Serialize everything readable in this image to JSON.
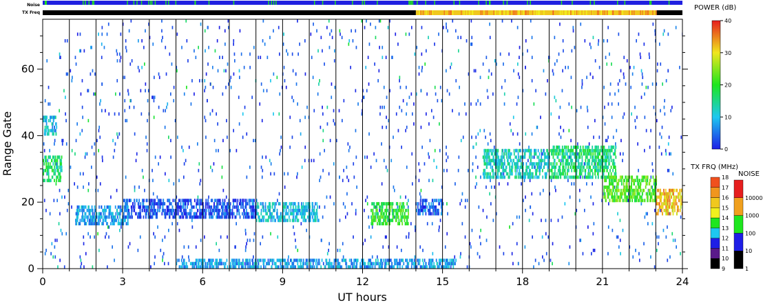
{
  "chart_data": {
    "type": "heatmap",
    "xlabel": "UT hours",
    "ylabel": "Range Gate",
    "xlim": [
      0,
      24
    ],
    "ylim": [
      0,
      75
    ],
    "x_ticks": [
      "0",
      "3",
      "6",
      "9",
      "12",
      "15",
      "18",
      "21",
      "24"
    ],
    "x_tick_values": [
      0,
      3,
      6,
      9,
      12,
      15,
      18,
      21,
      24
    ],
    "y_ticks": [
      "0",
      "20",
      "40",
      "60"
    ],
    "y_tick_values": [
      0,
      20,
      40,
      60
    ],
    "scan_boundaries": [
      1,
      2,
      3,
      4,
      5,
      6,
      7,
      8,
      9,
      10,
      11,
      12,
      13,
      14,
      15,
      16,
      17,
      18,
      19,
      20,
      21,
      22,
      23
    ],
    "power_regions": [
      {
        "t0": 0.0,
        "t1": 0.7,
        "r0": 26,
        "r1": 34,
        "power": 16
      },
      {
        "t0": 0.0,
        "t1": 0.5,
        "r0": 40,
        "r1": 46,
        "power": 10
      },
      {
        "t0": 1.2,
        "t1": 3.2,
        "r0": 13,
        "r1": 19,
        "power": 8
      },
      {
        "t0": 3.0,
        "t1": 8.0,
        "r0": 15,
        "r1": 21,
        "power": 3
      },
      {
        "t0": 8.0,
        "t1": 10.3,
        "r0": 14,
        "r1": 20,
        "power": 10
      },
      {
        "t0": 12.3,
        "t1": 13.7,
        "r0": 13,
        "r1": 20,
        "power": 20
      },
      {
        "t0": 14.0,
        "t1": 15.0,
        "r0": 16,
        "r1": 21,
        "power": 4
      },
      {
        "t0": 16.5,
        "t1": 19.0,
        "r0": 27,
        "r1": 36,
        "power": 12
      },
      {
        "t0": 19.0,
        "t1": 21.5,
        "r0": 27,
        "r1": 37,
        "power": 16
      },
      {
        "t0": 21.0,
        "t1": 23.0,
        "r0": 20,
        "r1": 28,
        "power": 22
      },
      {
        "t0": 23.0,
        "t1": 24.0,
        "r0": 16,
        "r1": 24,
        "power": 32
      },
      {
        "t0": 5.0,
        "t1": 15.5,
        "r0": 0,
        "r1": 3,
        "power": 8
      }
    ],
    "tx_freq_segments": [
      {
        "t0": 0,
        "t1": 14,
        "freq_mhz": 9.5
      },
      {
        "t0": 14,
        "t1": 23,
        "freq_mhz": 15
      },
      {
        "t0": 23,
        "t1": 24,
        "freq_mhz": 9.5
      }
    ],
    "noise_level": 10,
    "power_colorbar": {
      "title": "POWER (dB)",
      "ticks": [
        "0",
        "10",
        "20",
        "30",
        "40"
      ],
      "min": 0,
      "max": 40
    },
    "tx_freq_colorbar": {
      "title": "TX FRQ (MHz)",
      "ticks": [
        "9",
        "10",
        "11",
        "12",
        "13",
        "14",
        "15",
        "16",
        "17",
        "18"
      ]
    },
    "noise_colorbar": {
      "title": "NOISE",
      "ticks": [
        "1",
        "10",
        "100",
        "1000",
        "10000"
      ]
    },
    "strip_labels": {
      "noise": "Noise",
      "tx_freq": "TX Freq"
    }
  },
  "colors": {
    "tx_freq": [
      "#000000",
      "#5a1a8a",
      "#1e1ee6",
      "#1ec8f0",
      "#1ee61e",
      "#f0f01e",
      "#f0c81e",
      "#f0961e",
      "#f0501e",
      "#e61e1e"
    ],
    "noise": [
      "#000000",
      "#1e1ee6",
      "#1ee61e",
      "#f0a01e",
      "#e61e1e"
    ],
    "noise_strip": "#2020e0",
    "noise_ticks": "#20e020"
  }
}
